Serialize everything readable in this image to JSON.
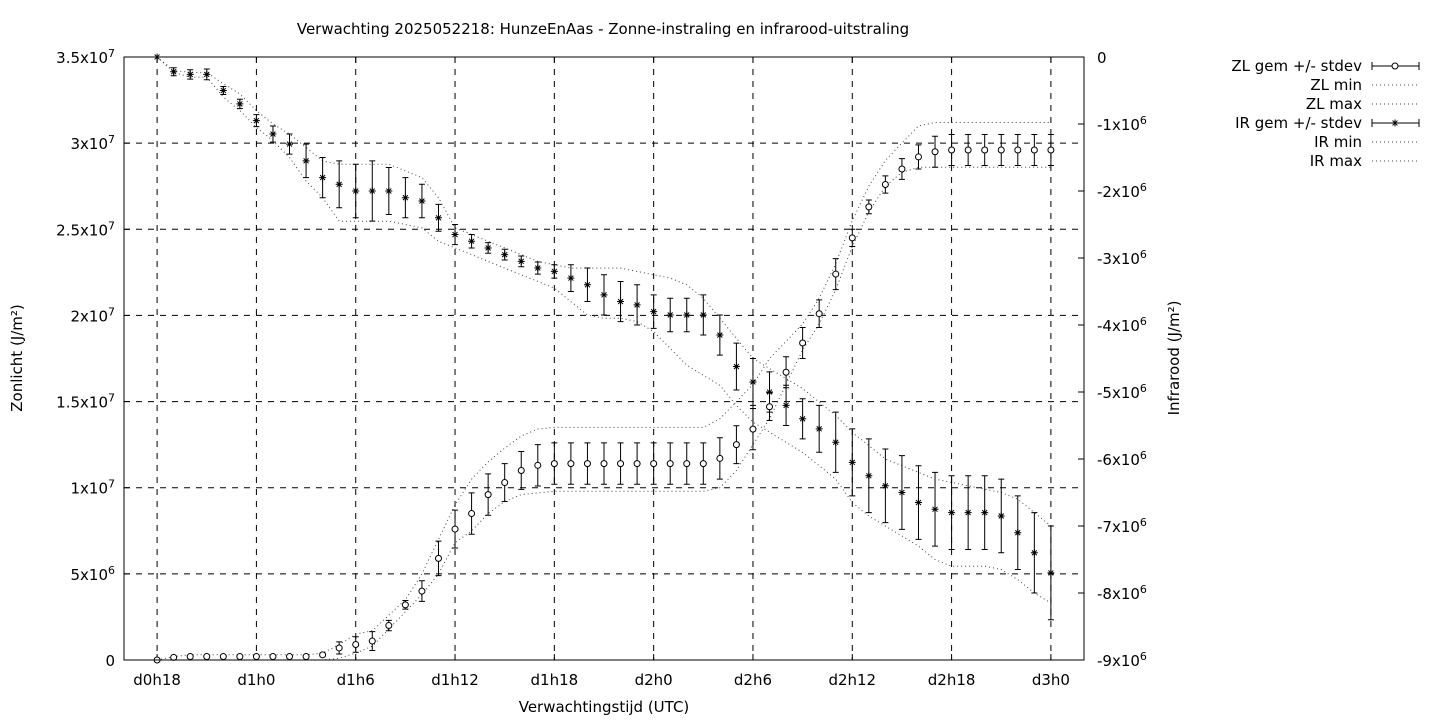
{
  "chart_data": {
    "type": "line",
    "title": "Verwachting 2025052218: HunzeEnAas - Zonne-instraling en infrarood-uitstraling",
    "xlabel": "Verwachtingstijd (UTC)",
    "ylabel": "Zonlicht (J/m²)",
    "y2label": "Infrarood (J/m²)",
    "x_ticks": [
      "d0h18",
      "d1h0",
      "d1h6",
      "d1h12",
      "d1h18",
      "d2h0",
      "d2h6",
      "d2h12",
      "d2h18",
      "d3h0"
    ],
    "x_unit": "hours since forecast start (d0h18 = 0)",
    "xlim": [
      -2,
      56
    ],
    "ylim": [
      0,
      35000000
    ],
    "y2lim": [
      -9000000,
      0
    ],
    "y_ticks": [
      {
        "v": 0,
        "m": "0",
        "e": ""
      },
      {
        "v": 5000000,
        "m": "5x10",
        "e": "6"
      },
      {
        "v": 10000000,
        "m": "1x10",
        "e": "7"
      },
      {
        "v": 15000000,
        "m": "1.5x10",
        "e": "7"
      },
      {
        "v": 20000000,
        "m": "2x10",
        "e": "7"
      },
      {
        "v": 25000000,
        "m": "2.5x10",
        "e": "7"
      },
      {
        "v": 30000000,
        "m": "3x10",
        "e": "7"
      },
      {
        "v": 35000000,
        "m": "3.5x10",
        "e": "7"
      }
    ],
    "y2_ticks": [
      {
        "v": 0,
        "m": "0",
        "e": ""
      },
      {
        "v": -1000000,
        "m": "-1x10",
        "e": "6"
      },
      {
        "v": -2000000,
        "m": "-2x10",
        "e": "6"
      },
      {
        "v": -3000000,
        "m": "-3x10",
        "e": "6"
      },
      {
        "v": -4000000,
        "m": "-4x10",
        "e": "6"
      },
      {
        "v": -5000000,
        "m": "-5x10",
        "e": "6"
      },
      {
        "v": -6000000,
        "m": "-6x10",
        "e": "6"
      },
      {
        "v": -7000000,
        "m": "-7x10",
        "e": "6"
      },
      {
        "v": -8000000,
        "m": "-8x10",
        "e": "6"
      },
      {
        "v": -9000000,
        "m": "-9x10",
        "e": "6"
      }
    ],
    "grid": true,
    "legend_position": "outside top-right",
    "x": [
      0,
      1,
      2,
      3,
      4,
      5,
      6,
      7,
      8,
      9,
      10,
      11,
      12,
      13,
      14,
      15,
      16,
      17,
      18,
      19,
      20,
      21,
      22,
      23,
      24,
      25,
      26,
      27,
      28,
      29,
      30,
      31,
      32,
      33,
      34,
      35,
      36,
      37,
      38,
      39,
      40,
      41,
      42,
      43,
      44,
      45,
      46,
      47,
      48,
      49,
      50,
      51,
      52,
      53,
      54
    ],
    "series": [
      {
        "name": "ZL gem +/- stdev",
        "axis": "y1",
        "marker": "circle",
        "values": [
          0,
          150000,
          200000,
          200000,
          200000,
          200000,
          200000,
          200000,
          200000,
          200000,
          300000,
          700000,
          900000,
          1100000,
          2000000,
          3200000,
          4000000,
          5900000,
          7600000,
          8500000,
          9600000,
          10300000,
          11000000,
          11300000,
          11400000,
          11400000,
          11400000,
          11400000,
          11400000,
          11400000,
          11400000,
          11400000,
          11400000,
          11400000,
          11700000,
          12500000,
          13400000,
          14700000,
          16700000,
          18400000,
          20100000,
          22400000,
          24500000,
          26300000,
          27600000,
          28500000,
          29200000,
          29500000,
          29600000,
          29600000,
          29600000,
          29600000,
          29600000,
          29600000,
          29600000
        ],
        "stdev": [
          0,
          80000,
          80000,
          80000,
          80000,
          80000,
          80000,
          80000,
          80000,
          80000,
          100000,
          350000,
          450000,
          550000,
          300000,
          250000,
          600000,
          1000000,
          1100000,
          1200000,
          1200000,
          1100000,
          1100000,
          1200000,
          1200000,
          1200000,
          1200000,
          1200000,
          1200000,
          1200000,
          1200000,
          1200000,
          1200000,
          1200000,
          1200000,
          1100000,
          1200000,
          800000,
          900000,
          900000,
          800000,
          900000,
          500000,
          400000,
          500000,
          600000,
          700000,
          900000,
          900000,
          900000,
          900000,
          900000,
          900000,
          900000,
          900000
        ]
      },
      {
        "name": "ZL min",
        "axis": "y1",
        "style": "dotted",
        "values": [
          0,
          0,
          0,
          0,
          0,
          0,
          0,
          0,
          0,
          0,
          0,
          100000,
          400000,
          800000,
          1800000,
          2800000,
          3800000,
          5000000,
          6800000,
          7500000,
          8500000,
          9200000,
          9600000,
          9700000,
          9800000,
          9800000,
          9800000,
          9800000,
          9800000,
          9800000,
          9800000,
          9800000,
          9800000,
          9800000,
          10000000,
          11000000,
          12500000,
          14000000,
          16000000,
          18000000,
          19500000,
          21500000,
          24000000,
          26000000,
          27500000,
          28300000,
          28600000,
          28600000,
          28600000,
          28600000,
          28600000,
          28600000,
          28600000,
          28600000,
          28600000
        ]
      },
      {
        "name": "ZL max",
        "axis": "y1",
        "style": "dotted",
        "values": [
          0,
          200000,
          300000,
          300000,
          300000,
          300000,
          300000,
          300000,
          300000,
          300000,
          400000,
          900000,
          1500000,
          1700000,
          2600000,
          3500000,
          5000000,
          7000000,
          9000000,
          10500000,
          11500000,
          12300000,
          13000000,
          13400000,
          13500000,
          13500000,
          13500000,
          13500000,
          13500000,
          13500000,
          13500000,
          13500000,
          13500000,
          13500000,
          14000000,
          15000000,
          16000000,
          17500000,
          18500000,
          19500000,
          21000000,
          23000000,
          25500000,
          27500000,
          29000000,
          30000000,
          31000000,
          31200000,
          31200000,
          31200000,
          31200000,
          31200000,
          31200000,
          31200000,
          31200000
        ]
      },
      {
        "name": "IR gem +/- stdev",
        "axis": "y2",
        "marker": "star",
        "values": [
          0,
          -220000,
          -260000,
          -260000,
          -500000,
          -700000,
          -950000,
          -1150000,
          -1300000,
          -1550000,
          -1800000,
          -1900000,
          -2000000,
          -2000000,
          -2000000,
          -2100000,
          -2150000,
          -2400000,
          -2650000,
          -2750000,
          -2850000,
          -2950000,
          -3050000,
          -3150000,
          -3200000,
          -3300000,
          -3400000,
          -3550000,
          -3650000,
          -3700000,
          -3800000,
          -3850000,
          -3850000,
          -3850000,
          -4150000,
          -4620000,
          -4850000,
          -5000000,
          -5200000,
          -5400000,
          -5550000,
          -5750000,
          -6050000,
          -6250000,
          -6400000,
          -6500000,
          -6650000,
          -6750000,
          -6800000,
          -6800000,
          -6800000,
          -6850000,
          -7100000,
          -7400000,
          -7700000
        ]
      },
      {
        "name": "IR min",
        "axis": "y2",
        "style": "dotted",
        "values": [
          0,
          -230000,
          -300000,
          -300000,
          -600000,
          -800000,
          -1050000,
          -1250000,
          -1500000,
          -1850000,
          -2100000,
          -2450000,
          -2450000,
          -2450000,
          -2450000,
          -2500000,
          -2550000,
          -2750000,
          -2850000,
          -2950000,
          -3050000,
          -3150000,
          -3250000,
          -3350000,
          -3450000,
          -3650000,
          -3850000,
          -3900000,
          -3900000,
          -3950000,
          -4100000,
          -4350000,
          -4600000,
          -4750000,
          -4900000,
          -5200000,
          -5450000,
          -5600000,
          -5750000,
          -5900000,
          -6100000,
          -6300000,
          -6650000,
          -6850000,
          -7000000,
          -7150000,
          -7300000,
          -7500000,
          -7600000,
          -7600000,
          -7600000,
          -7650000,
          -7800000,
          -8000000,
          -8150000
        ]
      },
      {
        "name": "IR max",
        "axis": "y2",
        "style": "dotted",
        "values": [
          0,
          -200000,
          -230000,
          -230000,
          -400000,
          -550000,
          -800000,
          -1000000,
          -1150000,
          -1350000,
          -1550000,
          -1600000,
          -1600000,
          -1600000,
          -1600000,
          -1700000,
          -1800000,
          -2100000,
          -2550000,
          -2650000,
          -2750000,
          -2850000,
          -2950000,
          -3050000,
          -3100000,
          -3150000,
          -3150000,
          -3150000,
          -3150000,
          -3200000,
          -3250000,
          -3300000,
          -3400000,
          -3600000,
          -3900000,
          -4200000,
          -4500000,
          -4650000,
          -4800000,
          -4950000,
          -5150000,
          -5350000,
          -5600000,
          -5800000,
          -6000000,
          -6100000,
          -6200000,
          -6300000,
          -6350000,
          -6400000,
          -6450000,
          -6500000,
          -6600000,
          -6800000,
          -7000000
        ]
      }
    ],
    "ir_stdev": [
      0,
      60000,
      70000,
      80000,
      60000,
      70000,
      90000,
      120000,
      150000,
      250000,
      300000,
      350000,
      400000,
      450000,
      350000,
      300000,
      250000,
      200000,
      150000,
      100000,
      80000,
      80000,
      80000,
      90000,
      100000,
      200000,
      250000,
      300000,
      300000,
      300000,
      250000,
      250000,
      250000,
      300000,
      300000,
      350000,
      350000,
      300000,
      300000,
      300000,
      350000,
      450000,
      500000,
      550000,
      550000,
      550000,
      550000,
      550000,
      550000,
      550000,
      550000,
      550000,
      550000,
      600000,
      700000
    ]
  }
}
